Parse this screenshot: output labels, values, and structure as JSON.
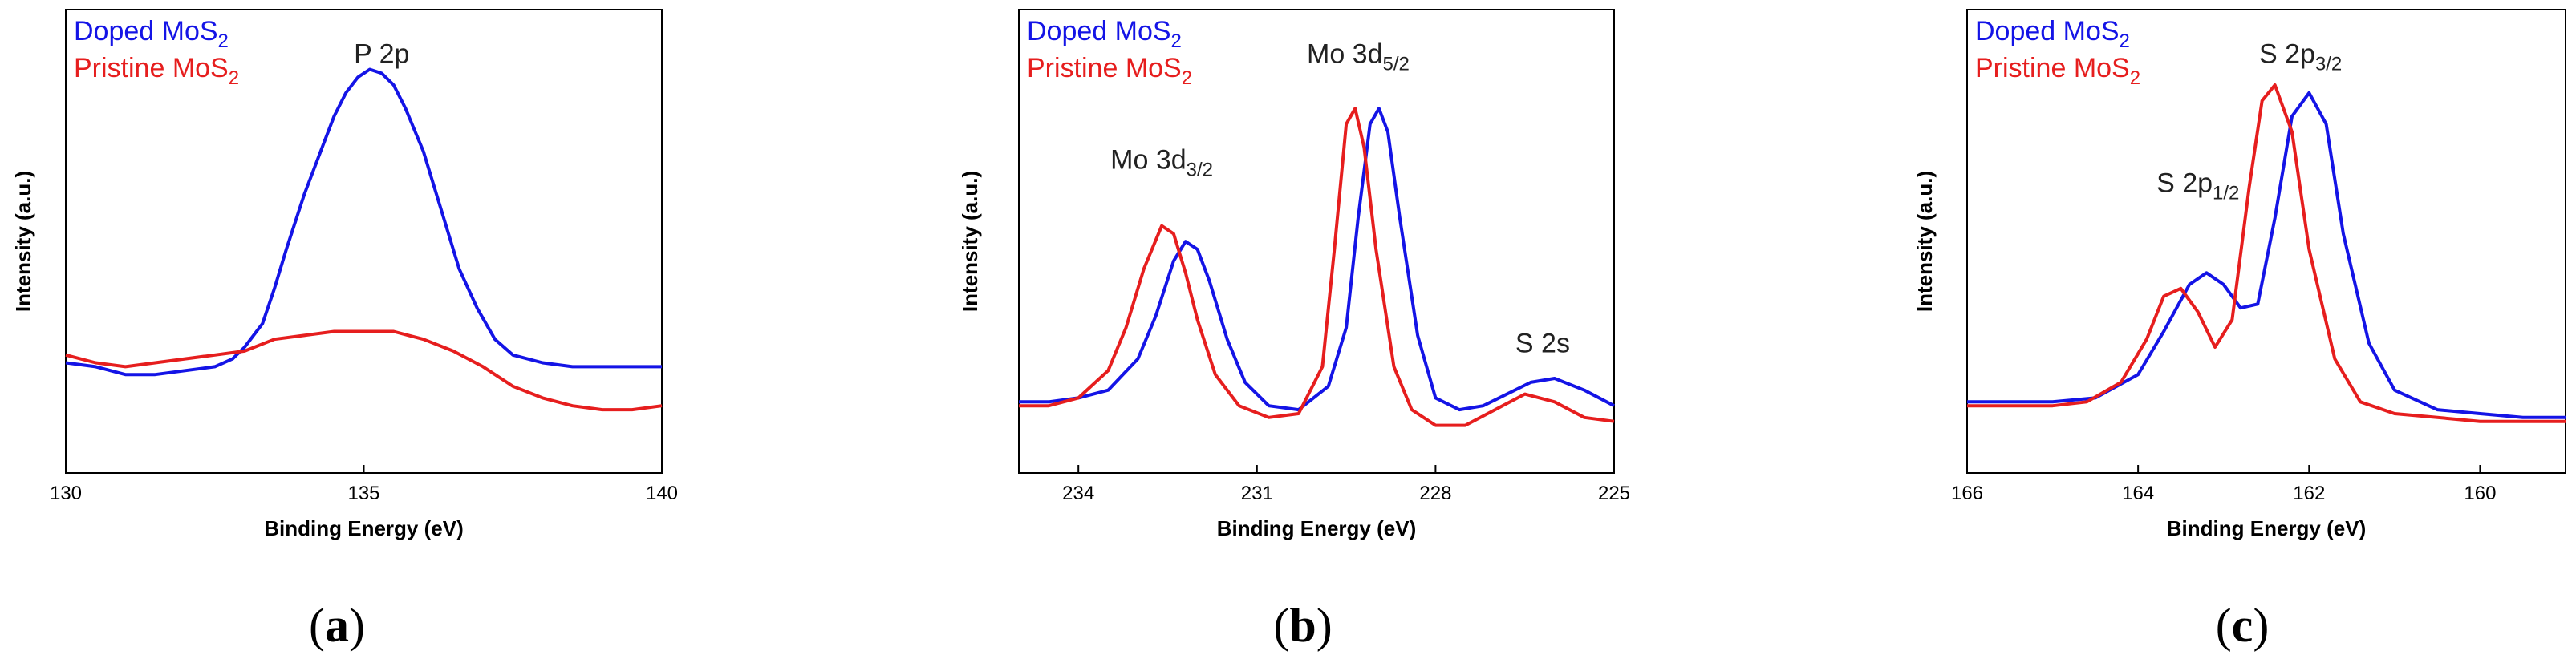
{
  "colors": {
    "doped": "#1414e6",
    "pristine": "#e61e1e",
    "axis": "#000000"
  },
  "chart_data": [
    {
      "type": "line",
      "caption": "a",
      "xlabel": "Binding Energy (eV)",
      "ylabel": "Intensity (a.u.)",
      "xlim": [
        130,
        140
      ],
      "x_reversed": false,
      "ylim": [
        0,
        100
      ],
      "xticks": [
        "130",
        "135",
        "140"
      ],
      "xtick_values": [
        130,
        135,
        140
      ],
      "legend": [
        {
          "main": "Doped MoS",
          "sub": "2",
          "color_key": "doped"
        },
        {
          "main": "Pristine MoS",
          "sub": "2",
          "color_key": "pristine"
        }
      ],
      "annotations": [
        {
          "main": "P 2p",
          "sub": "",
          "x": 135.3,
          "y": 96
        }
      ],
      "series": [
        {
          "name": "Doped MoS2",
          "color_key": "doped",
          "x": [
            130,
            130.5,
            131,
            131.5,
            132,
            132.5,
            132.8,
            133,
            133.3,
            133.5,
            133.7,
            134,
            134.3,
            134.5,
            134.7,
            134.9,
            135.1,
            135.3,
            135.5,
            135.7,
            136,
            136.3,
            136.6,
            136.9,
            137.2,
            137.5,
            138,
            138.5,
            139,
            139.5,
            140
          ],
          "y": [
            21,
            20,
            18,
            18,
            19,
            20,
            22,
            25,
            31,
            40,
            50,
            64,
            76,
            84,
            90,
            94,
            96,
            95,
            92,
            86,
            75,
            60,
            45,
            35,
            27,
            23,
            21,
            20,
            20,
            20,
            20
          ]
        },
        {
          "name": "Pristine MoS2",
          "color_key": "pristine",
          "x": [
            130,
            130.5,
            131,
            131.5,
            132,
            132.5,
            133,
            133.5,
            134,
            134.5,
            135,
            135.5,
            136,
            136.5,
            137,
            137.5,
            138,
            138.5,
            139,
            139.5,
            140
          ],
          "y": [
            23,
            21,
            20,
            21,
            22,
            23,
            24,
            27,
            28,
            29,
            29,
            29,
            27,
            24,
            20,
            15,
            12,
            10,
            9,
            9,
            10
          ]
        }
      ]
    },
    {
      "type": "line",
      "caption": "b",
      "xlabel": "Binding Energy (eV)",
      "ylabel": "Intensity (a.u.)",
      "xlim": [
        235,
        225
      ],
      "x_reversed": true,
      "ylim": [
        0,
        100
      ],
      "xticks": [
        "234",
        "231",
        "228",
        "225"
      ],
      "xtick_values": [
        234,
        231,
        228,
        225
      ],
      "legend": [
        {
          "main": "Doped MoS",
          "sub": "2",
          "color_key": "doped"
        },
        {
          "main": "Pristine MoS",
          "sub": "2",
          "color_key": "pristine"
        }
      ],
      "annotations": [
        {
          "main": "Mo 3d",
          "sub": "3/2",
          "x": 232.6,
          "y": 69
        },
        {
          "main": "Mo 3d",
          "sub": "5/2",
          "x": 229.3,
          "y": 96
        },
        {
          "main": "S 2s",
          "sub": "",
          "x": 226.2,
          "y": 22
        }
      ],
      "series": [
        {
          "name": "Doped MoS2",
          "color_key": "doped",
          "x": [
            235,
            234.5,
            234,
            233.5,
            233,
            232.7,
            232.4,
            232.2,
            232.0,
            231.8,
            231.5,
            231.2,
            230.8,
            230.3,
            229.8,
            229.5,
            229.3,
            229.1,
            228.95,
            228.8,
            228.6,
            228.3,
            228.0,
            227.6,
            227.2,
            226.8,
            226.4,
            226.0,
            225.5,
            225
          ],
          "y": [
            11,
            11,
            12,
            14,
            22,
            33,
            47,
            52,
            50,
            42,
            27,
            16,
            10,
            9,
            15,
            30,
            58,
            82,
            86,
            80,
            58,
            28,
            12,
            9,
            10,
            13,
            16,
            17,
            14,
            10
          ]
        },
        {
          "name": "Pristine MoS2",
          "color_key": "pristine",
          "x": [
            235,
            234.5,
            234,
            233.5,
            233.2,
            232.9,
            232.6,
            232.4,
            232.2,
            232.0,
            231.7,
            231.3,
            230.8,
            230.3,
            229.9,
            229.7,
            229.5,
            229.35,
            229.2,
            229.0,
            228.7,
            228.4,
            228.0,
            227.5,
            227.0,
            226.5,
            226.0,
            225.5,
            225
          ],
          "y": [
            10,
            10,
            12,
            19,
            30,
            45,
            56,
            54,
            44,
            32,
            18,
            10,
            7,
            8,
            20,
            50,
            82,
            86,
            76,
            50,
            20,
            9,
            5,
            5,
            9,
            13,
            11,
            7,
            6
          ]
        }
      ]
    },
    {
      "type": "line",
      "caption": "c",
      "xlabel": "Binding Energy (eV)",
      "ylabel": "Intensity (a.u.)",
      "xlim": [
        166,
        159
      ],
      "x_reversed": true,
      "ylim": [
        0,
        100
      ],
      "xticks": [
        "166",
        "164",
        "162",
        "160"
      ],
      "xtick_values": [
        166,
        164,
        162,
        160
      ],
      "legend": [
        {
          "main": "Doped MoS",
          "sub": "2",
          "color_key": "doped"
        },
        {
          "main": "Pristine MoS",
          "sub": "2",
          "color_key": "pristine"
        }
      ],
      "annotations": [
        {
          "main": "S 2p",
          "sub": "1/2",
          "x": 163.3,
          "y": 63
        },
        {
          "main": "S 2p",
          "sub": "3/2",
          "x": 162.1,
          "y": 96
        }
      ],
      "series": [
        {
          "name": "Doped MoS2",
          "color_key": "doped",
          "x": [
            166,
            165,
            164.5,
            164,
            163.7,
            163.4,
            163.2,
            163.0,
            162.8,
            162.6,
            162.4,
            162.2,
            162.0,
            161.8,
            161.6,
            161.3,
            161.0,
            160.5,
            160,
            159.5,
            159
          ],
          "y": [
            11,
            11,
            12,
            18,
            29,
            41,
            44,
            41,
            35,
            36,
            58,
            84,
            90,
            82,
            54,
            26,
            14,
            9,
            8,
            7,
            7
          ]
        },
        {
          "name": "Pristine MoS2",
          "color_key": "pristine",
          "x": [
            166,
            165,
            164.6,
            164.2,
            163.9,
            163.7,
            163.5,
            163.3,
            163.1,
            162.9,
            162.7,
            162.55,
            162.4,
            162.2,
            162.0,
            161.7,
            161.4,
            161.0,
            160.5,
            160,
            159.5,
            159
          ],
          "y": [
            10,
            10,
            11,
            16,
            27,
            38,
            40,
            34,
            25,
            32,
            66,
            88,
            92,
            80,
            50,
            22,
            11,
            8,
            7,
            6,
            6,
            6
          ]
        }
      ]
    }
  ]
}
